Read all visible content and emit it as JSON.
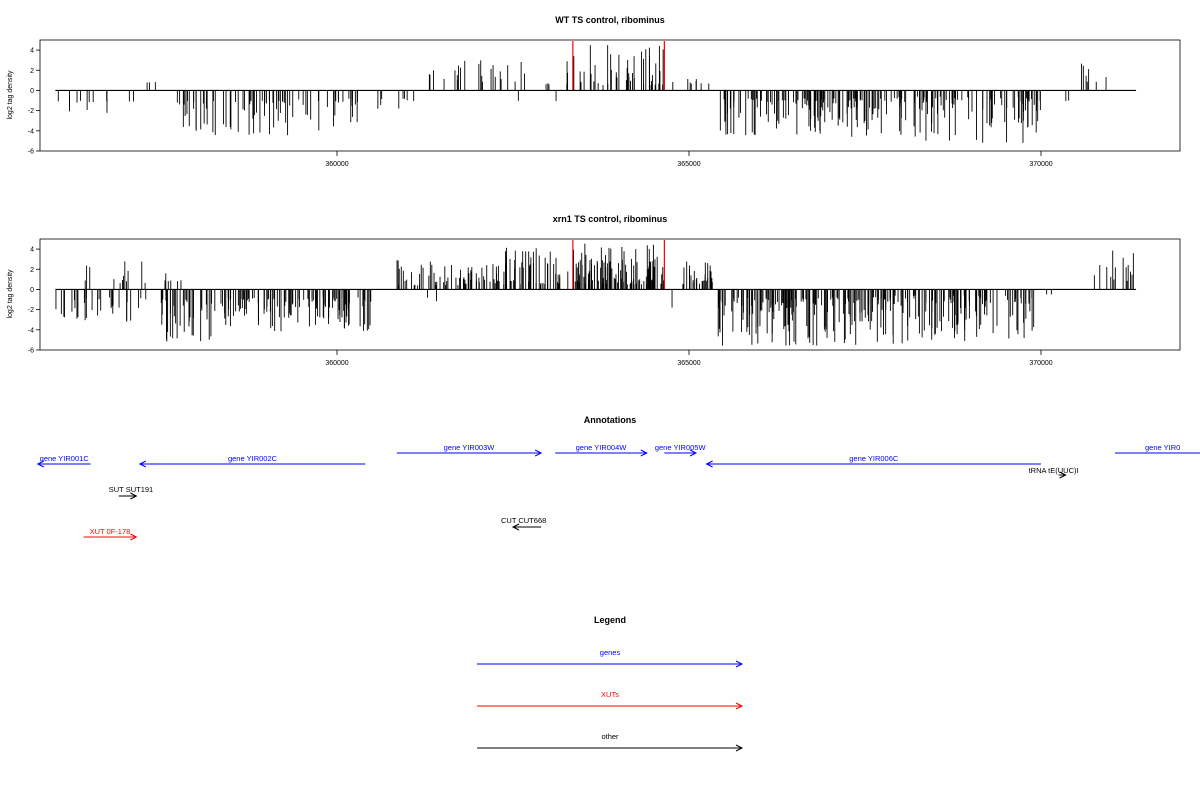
{
  "chart_data": [
    {
      "type": "bar",
      "title": "WT TS control, ribominus",
      "ylabel": "log2 tag density",
      "xlim": [
        355750,
        371950
      ],
      "ylim": [
        -6,
        5
      ],
      "xticks": [
        360000,
        365000,
        370000
      ],
      "yticks": [
        -6,
        -4,
        -2,
        0,
        2,
        4
      ],
      "markers": {
        "color": "#ff0000",
        "x": [
          363350,
          364650
        ]
      },
      "segments": [
        {
          "from": 356000,
          "to": 357300,
          "n": 12,
          "sign": -1,
          "min": 1.0,
          "max": 2.8
        },
        {
          "from": 357300,
          "to": 357600,
          "n": 3,
          "sign": 1,
          "min": 0.8,
          "max": 1.6
        },
        {
          "from": 357700,
          "to": 359300,
          "n": 55,
          "sign": -1,
          "min": 1.0,
          "max": 4.8
        },
        {
          "from": 359300,
          "to": 360300,
          "n": 25,
          "sign": -1,
          "min": 0.8,
          "max": 4.0
        },
        {
          "from": 360300,
          "to": 361200,
          "n": 8,
          "sign": -1,
          "min": 0.8,
          "max": 2.0
        },
        {
          "from": 361200,
          "to": 361700,
          "n": 5,
          "sign": 1,
          "min": 0.8,
          "max": 2.0
        },
        {
          "from": 361700,
          "to": 362400,
          "n": 14,
          "sign": 1,
          "min": 0.8,
          "max": 3.0
        },
        {
          "from": 362400,
          "to": 363300,
          "n": 10,
          "sign": 1,
          "min": 0.6,
          "max": 3.0
        },
        {
          "from": 362400,
          "to": 363300,
          "n": 2,
          "sign": -1,
          "min": 0.8,
          "max": 1.4
        },
        {
          "from": 363350,
          "to": 364650,
          "n": 45,
          "sign": 1,
          "min": 0.5,
          "max": 4.6
        },
        {
          "from": 364650,
          "to": 365350,
          "n": 8,
          "sign": 1,
          "min": 0.6,
          "max": 1.8
        },
        {
          "from": 365400,
          "to": 367500,
          "n": 110,
          "sign": -1,
          "min": 0.8,
          "max": 4.6
        },
        {
          "from": 367500,
          "to": 370000,
          "n": 110,
          "sign": -1,
          "min": 0.6,
          "max": 5.2
        },
        {
          "from": 370300,
          "to": 370500,
          "n": 2,
          "sign": -1,
          "min": 1.0,
          "max": 2.2
        },
        {
          "from": 370450,
          "to": 371050,
          "n": 7,
          "sign": 1,
          "min": 0.8,
          "max": 3.0
        }
      ]
    },
    {
      "type": "bar",
      "title": "xrn1 TS control, ribominus",
      "ylabel": "log2 tag density",
      "xlim": [
        355750,
        371950
      ],
      "ylim": [
        -6,
        5
      ],
      "xticks": [
        360000,
        365000,
        370000
      ],
      "yticks": [
        -6,
        -4,
        -2,
        0,
        2,
        4
      ],
      "markers": {
        "color": "#ff0000",
        "x": [
          363350,
          364650
        ]
      },
      "segments": [
        {
          "from": 356000,
          "to": 357300,
          "n": 30,
          "sign": -1,
          "min": 0.8,
          "max": 3.2
        },
        {
          "from": 356400,
          "to": 357300,
          "n": 12,
          "sign": 1,
          "min": 0.6,
          "max": 2.8
        },
        {
          "from": 357500,
          "to": 358300,
          "n": 40,
          "sign": -1,
          "min": 1.0,
          "max": 5.6
        },
        {
          "from": 357500,
          "to": 357800,
          "n": 6,
          "sign": 1,
          "min": 0.8,
          "max": 2.2
        },
        {
          "from": 358300,
          "to": 360500,
          "n": 120,
          "sign": -1,
          "min": 0.8,
          "max": 4.2
        },
        {
          "from": 360850,
          "to": 362200,
          "n": 55,
          "sign": 1,
          "min": 0.4,
          "max": 3.0
        },
        {
          "from": 361200,
          "to": 361500,
          "n": 2,
          "sign": -1,
          "min": 0.8,
          "max": 1.2
        },
        {
          "from": 362200,
          "to": 363300,
          "n": 60,
          "sign": 1,
          "min": 0.5,
          "max": 4.4
        },
        {
          "from": 363350,
          "to": 364650,
          "n": 110,
          "sign": 1,
          "min": 0.5,
          "max": 4.6
        },
        {
          "from": 364700,
          "to": 364800,
          "n": 1,
          "sign": -1,
          "min": 1.8,
          "max": 2.0
        },
        {
          "from": 364900,
          "to": 365350,
          "n": 30,
          "sign": 1,
          "min": 0.5,
          "max": 2.8
        },
        {
          "from": 365400,
          "to": 367500,
          "n": 130,
          "sign": -1,
          "min": 0.8,
          "max": 5.6
        },
        {
          "from": 367500,
          "to": 369900,
          "n": 140,
          "sign": -1,
          "min": 0.6,
          "max": 5.4
        },
        {
          "from": 369950,
          "to": 370150,
          "n": 2,
          "sign": -1,
          "min": 0.3,
          "max": 0.6
        },
        {
          "from": 370650,
          "to": 371350,
          "n": 14,
          "sign": 1,
          "min": 0.6,
          "max": 4.2
        }
      ]
    }
  ],
  "annotations": {
    "title": "Annotations",
    "items": [
      {
        "label": "gene YIR001C",
        "color": "#0000ff",
        "start": 356500,
        "end": 355750,
        "row": 1
      },
      {
        "label": "gene YIR002C",
        "color": "#0000ff",
        "start": 360400,
        "end": 357200,
        "row": 1
      },
      {
        "label": "gene YIR003W",
        "color": "#0000ff",
        "start": 360850,
        "end": 362900,
        "row": 0
      },
      {
        "label": "gene YIR004W",
        "color": "#0000ff",
        "start": 363100,
        "end": 364400,
        "row": 0
      },
      {
        "label": "gene YIR005W",
        "color": "#0000ff",
        "start": 364650,
        "end": 365100,
        "row": 0
      },
      {
        "label": "gene YIR006C",
        "color": "#0000ff",
        "start": 370000,
        "end": 365250,
        "row": 1
      },
      {
        "label": "gene YIR0",
        "color": "#0000ff",
        "start": 371050,
        "end": 372500,
        "row": 0
      },
      {
        "label": "tRNA tE(UUC)I",
        "color": "#000000",
        "start": 370250,
        "end": 370350,
        "row": 2
      },
      {
        "label": "SUT SUT191",
        "color": "#000000",
        "start": 356900,
        "end": 357150,
        "row": 3
      },
      {
        "label": "XUT 0F-178",
        "color": "#ff0000",
        "start": 356400,
        "end": 357150,
        "row": 4
      },
      {
        "label": "CUT CUT668",
        "color": "#000000",
        "start": 362900,
        "end": 362500,
        "row": 5
      }
    ]
  },
  "legend": {
    "title": "Legend",
    "items": [
      {
        "label": "genes",
        "color": "#0000ff"
      },
      {
        "label": "XUTs",
        "color": "#ff0000"
      },
      {
        "label": "other",
        "color": "#000000"
      }
    ]
  }
}
